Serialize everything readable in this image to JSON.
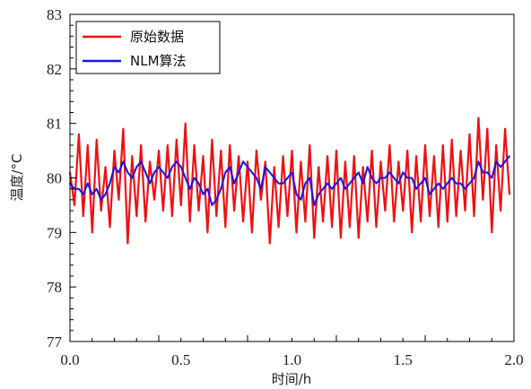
{
  "chart_data": {
    "type": "line",
    "xlabel": "时间/h",
    "ylabel": "温度/°C",
    "xlim": [
      0,
      2.0
    ],
    "ylim": [
      77,
      83
    ],
    "xticks": [
      0,
      0.5,
      1.0,
      1.5,
      2.0
    ],
    "xtick_labels": [
      "0.0",
      "0.5",
      "1.0",
      "1.5",
      "2.0"
    ],
    "yticks": [
      77,
      78,
      79,
      80,
      81,
      82,
      83
    ],
    "ytick_labels": [
      "77",
      "78",
      "79",
      "80",
      "81",
      "82",
      "83"
    ],
    "grid": false,
    "legend_position": "top-left",
    "series": [
      {
        "name": "原始数据",
        "color": "#ee1111",
        "x": [
          0.0,
          0.02,
          0.04,
          0.06,
          0.08,
          0.1,
          0.12,
          0.14,
          0.16,
          0.18,
          0.2,
          0.22,
          0.24,
          0.26,
          0.28,
          0.3,
          0.32,
          0.34,
          0.36,
          0.38,
          0.4,
          0.42,
          0.44,
          0.46,
          0.48,
          0.5,
          0.52,
          0.54,
          0.56,
          0.58,
          0.6,
          0.62,
          0.64,
          0.66,
          0.68,
          0.7,
          0.72,
          0.74,
          0.76,
          0.78,
          0.8,
          0.82,
          0.84,
          0.86,
          0.88,
          0.9,
          0.92,
          0.94,
          0.96,
          0.98,
          1.0,
          1.02,
          1.04,
          1.06,
          1.08,
          1.1,
          1.12,
          1.14,
          1.16,
          1.18,
          1.2,
          1.22,
          1.24,
          1.26,
          1.28,
          1.3,
          1.32,
          1.34,
          1.36,
          1.38,
          1.4,
          1.42,
          1.44,
          1.46,
          1.48,
          1.5,
          1.52,
          1.54,
          1.56,
          1.58,
          1.6,
          1.62,
          1.64,
          1.66,
          1.68,
          1.7,
          1.72,
          1.74,
          1.76,
          1.78,
          1.8,
          1.82,
          1.84,
          1.86,
          1.88,
          1.9,
          1.92,
          1.94,
          1.96,
          1.98
        ],
        "values": [
          80.1,
          79.5,
          80.8,
          79.3,
          80.6,
          79.0,
          80.7,
          79.4,
          80.2,
          79.1,
          80.5,
          79.6,
          80.9,
          78.8,
          80.4,
          79.3,
          80.6,
          79.2,
          80.3,
          79.6,
          80.5,
          79.4,
          80.6,
          79.3,
          80.7,
          79.5,
          81.0,
          79.2,
          80.6,
          79.4,
          80.4,
          79.0,
          80.7,
          79.3,
          80.5,
          79.1,
          80.6,
          79.4,
          80.4,
          79.2,
          80.3,
          79.0,
          80.5,
          79.6,
          80.3,
          78.8,
          80.2,
          79.1,
          80.4,
          79.3,
          80.5,
          79.0,
          80.3,
          79.2,
          80.6,
          78.9,
          80.2,
          79.2,
          80.4,
          79.1,
          80.5,
          78.9,
          80.3,
          79.1,
          80.4,
          78.9,
          80.2,
          79.2,
          80.5,
          79.1,
          80.3,
          79.4,
          80.6,
          79.2,
          80.3,
          79.4,
          80.5,
          79.0,
          80.4,
          79.2,
          80.6,
          79.3,
          80.4,
          79.1,
          80.6,
          79.2,
          80.7,
          79.3,
          80.5,
          79.4,
          80.8,
          79.3,
          81.1,
          79.6,
          80.9,
          79.0,
          80.6,
          79.4,
          80.9,
          79.7
        ]
      },
      {
        "name": "NLM算法",
        "color": "#1515e6",
        "x": [
          0.0,
          0.02,
          0.04,
          0.06,
          0.08,
          0.1,
          0.12,
          0.14,
          0.16,
          0.18,
          0.2,
          0.22,
          0.24,
          0.26,
          0.28,
          0.3,
          0.32,
          0.34,
          0.36,
          0.38,
          0.4,
          0.42,
          0.44,
          0.46,
          0.48,
          0.5,
          0.52,
          0.54,
          0.56,
          0.58,
          0.6,
          0.62,
          0.64,
          0.66,
          0.68,
          0.7,
          0.72,
          0.74,
          0.76,
          0.78,
          0.8,
          0.82,
          0.84,
          0.86,
          0.88,
          0.9,
          0.92,
          0.94,
          0.96,
          0.98,
          1.0,
          1.02,
          1.04,
          1.06,
          1.08,
          1.1,
          1.12,
          1.14,
          1.16,
          1.18,
          1.2,
          1.22,
          1.24,
          1.26,
          1.28,
          1.3,
          1.32,
          1.34,
          1.36,
          1.38,
          1.4,
          1.42,
          1.44,
          1.46,
          1.48,
          1.5,
          1.52,
          1.54,
          1.56,
          1.58,
          1.6,
          1.62,
          1.64,
          1.66,
          1.68,
          1.7,
          1.72,
          1.74,
          1.76,
          1.78,
          1.8,
          1.82,
          1.84,
          1.86,
          1.88,
          1.9,
          1.92,
          1.94,
          1.96,
          1.98
        ],
        "values": [
          79.9,
          79.8,
          79.8,
          79.7,
          79.9,
          79.7,
          79.8,
          79.6,
          79.7,
          79.9,
          80.2,
          80.1,
          80.3,
          80.1,
          80.0,
          80.2,
          80.3,
          80.1,
          79.9,
          80.1,
          80.2,
          80.1,
          80.0,
          80.2,
          80.3,
          80.2,
          80.0,
          79.8,
          80.0,
          79.9,
          79.7,
          79.8,
          79.5,
          79.6,
          79.8,
          80.1,
          80.2,
          79.9,
          80.1,
          80.3,
          80.2,
          80.1,
          80.0,
          79.8,
          80.2,
          80.1,
          80.0,
          79.9,
          79.9,
          80.0,
          80.1,
          79.7,
          79.6,
          79.9,
          80.0,
          79.5,
          79.7,
          79.8,
          79.9,
          79.8,
          79.9,
          80.0,
          79.8,
          79.9,
          80.0,
          80.1,
          79.9,
          80.2,
          80.0,
          79.9,
          80.0,
          80.0,
          80.1,
          80.0,
          79.9,
          80.1,
          80.0,
          80.0,
          79.8,
          79.9,
          80.0,
          79.7,
          79.8,
          79.9,
          79.8,
          79.9,
          80.0,
          79.9,
          79.9,
          79.8,
          79.9,
          80.0,
          80.3,
          80.1,
          80.1,
          80.0,
          80.3,
          80.2,
          80.3,
          80.4
        ]
      }
    ]
  }
}
